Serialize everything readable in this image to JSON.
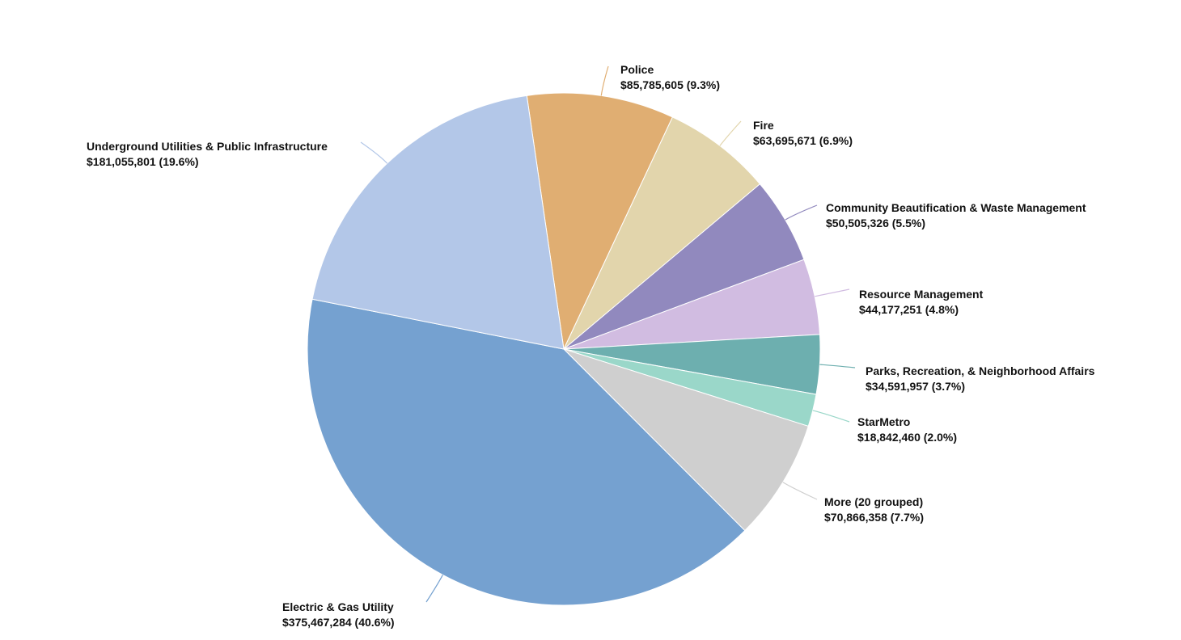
{
  "chart_data": {
    "type": "pie",
    "title": "",
    "slices": [
      {
        "label": "Police",
        "value": 85785605,
        "value_text": "$85,785,605 (9.3%)",
        "percent": 9.3,
        "color": "#e0ae72"
      },
      {
        "label": "Fire",
        "value": 63695671,
        "value_text": "$63,695,671 (6.9%)",
        "percent": 6.9,
        "color": "#e2d5ac"
      },
      {
        "label": "Community Beautification & Waste Management",
        "value": 50505326,
        "value_text": "$50,505,326 (5.5%)",
        "percent": 5.5,
        "color": "#9189be"
      },
      {
        "label": "Resource Management",
        "value": 44177251,
        "value_text": "$44,177,251 (4.8%)",
        "percent": 4.8,
        "color": "#d1bce1"
      },
      {
        "label": "Parks, Recreation, & Neighborhood Affairs",
        "value": 34591957,
        "value_text": "$34,591,957 (3.7%)",
        "percent": 3.7,
        "color": "#6dafaf"
      },
      {
        "label": "StarMetro",
        "value": 18842460,
        "value_text": "$18,842,460 (2.0%)",
        "percent": 2.0,
        "color": "#9ad7c9"
      },
      {
        "label": "More (20 grouped)",
        "value": 70866358,
        "value_text": "$70,866,358 (7.7%)",
        "percent": 7.7,
        "color": "#cfcfcf"
      },
      {
        "label": "Electric & Gas Utility",
        "value": 375467284,
        "value_text": "$375,467,284 (40.6%)",
        "percent": 40.6,
        "color": "#75a1d0"
      },
      {
        "label": "Underground Utilities & Public Infrastructure",
        "value": 181055801,
        "value_text": "$181,055,801 (19.6%)",
        "percent": 19.6,
        "color": "#b3c7e8"
      }
    ]
  }
}
